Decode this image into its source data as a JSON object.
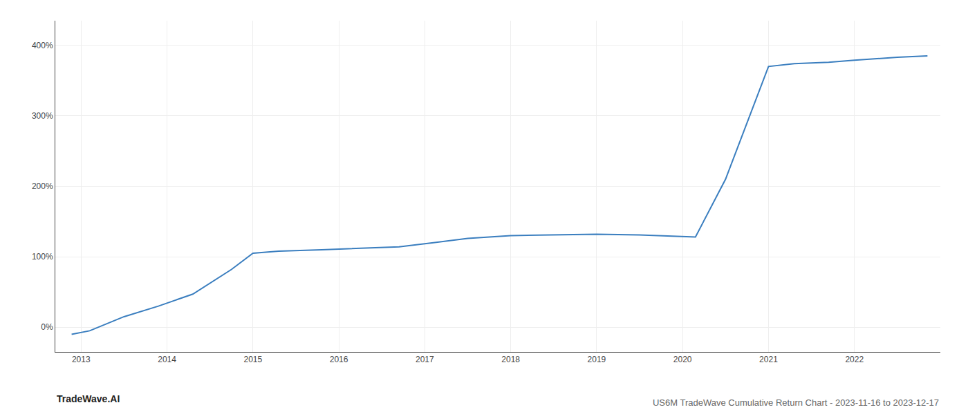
{
  "chart_data": {
    "type": "line",
    "title": "US6M TradeWave Cumulative Return Chart - 2023-11-16 to 2023-12-17",
    "annotations": [
      "TradeWave.AI"
    ],
    "x": [
      2012.89,
      2013.1,
      2013.5,
      2013.9,
      2014.3,
      2014.75,
      2015.0,
      2015.3,
      2015.8,
      2016.2,
      2016.7,
      2017.1,
      2017.5,
      2018.0,
      2018.5,
      2019.0,
      2019.5,
      2020.0,
      2020.15,
      2020.5,
      2021.0,
      2021.3,
      2021.7,
      2022.0,
      2022.5,
      2022.85
    ],
    "values": [
      -10,
      -5,
      15,
      30,
      47,
      82,
      105,
      108,
      110,
      112,
      114,
      120,
      126,
      130,
      131,
      132,
      131,
      129,
      128,
      210,
      370,
      374,
      376,
      379,
      383,
      385
    ],
    "color": "#3a7ebf",
    "xlim": [
      2012.7,
      2023.0
    ],
    "ylim": [
      -35,
      435
    ],
    "xticks": [
      2013,
      2014,
      2015,
      2016,
      2017,
      2018,
      2019,
      2020,
      2021,
      2022
    ],
    "yticks": [
      {
        "value": 0,
        "label": "0%"
      },
      {
        "value": 100,
        "label": "100%"
      },
      {
        "value": 200,
        "label": "200%"
      },
      {
        "value": 300,
        "label": "300%"
      },
      {
        "value": 400,
        "label": "400%"
      }
    ],
    "grid": true
  }
}
